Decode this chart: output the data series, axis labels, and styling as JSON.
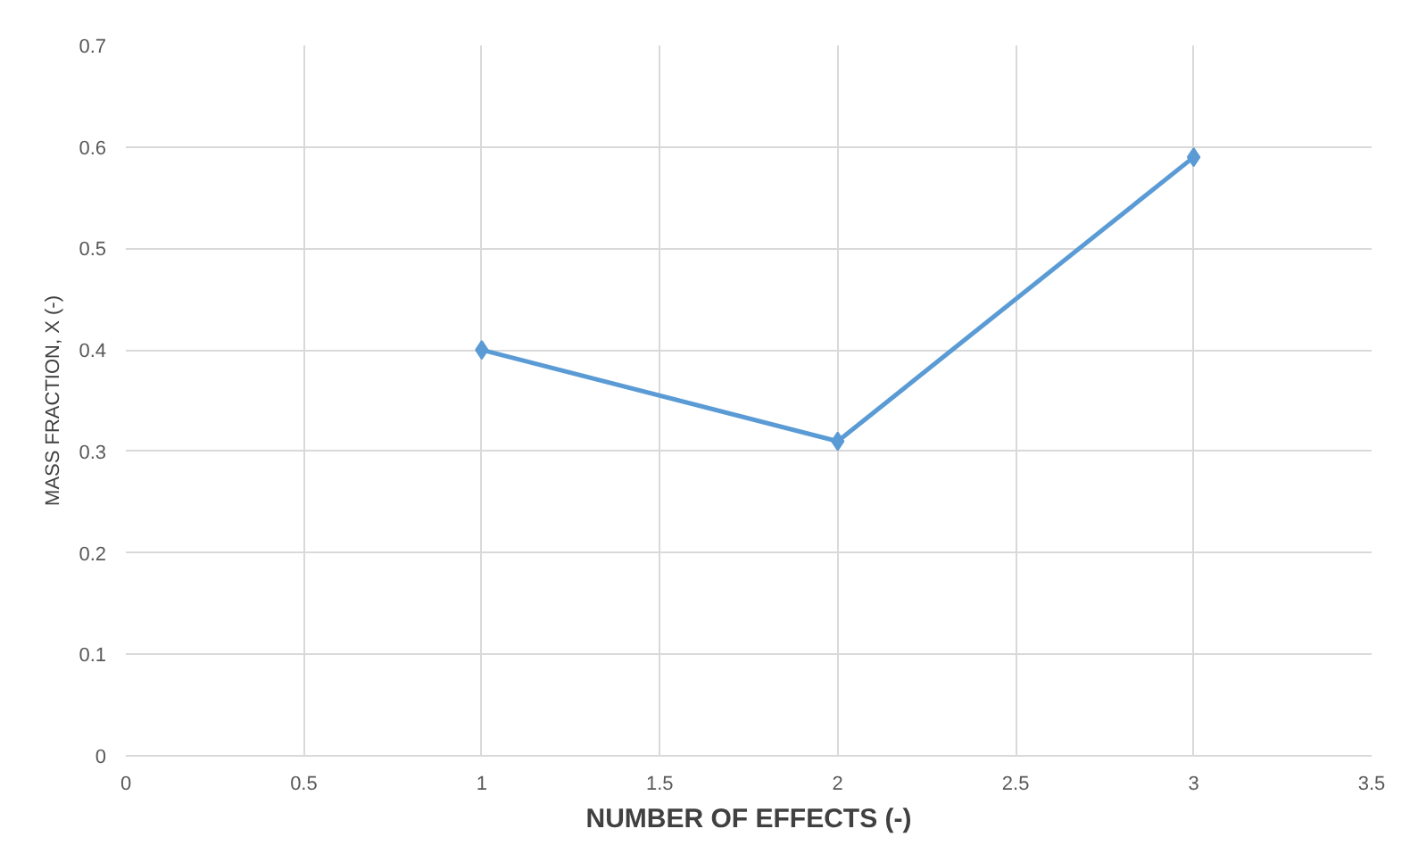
{
  "chart_data": {
    "type": "line",
    "xlabel": "NUMBER OF EFFECTS (-)",
    "ylabel": "MASS FRACTION, X (-)",
    "x": [
      1,
      2,
      3
    ],
    "series": [
      {
        "color": "#5b9bd5",
        "values": [
          0.4,
          0.31,
          0.59
        ]
      }
    ],
    "xlim": [
      0,
      3.5
    ],
    "xticks": [
      0,
      0.5,
      1,
      1.5,
      2,
      2.5,
      3,
      3.5
    ],
    "ylim": [
      0,
      0.7
    ],
    "yticks": [
      0,
      0.1,
      0.2,
      0.3,
      0.4,
      0.5,
      0.6,
      0.7
    ],
    "grid": true,
    "marker": "diamond",
    "line_style": "solid"
  }
}
